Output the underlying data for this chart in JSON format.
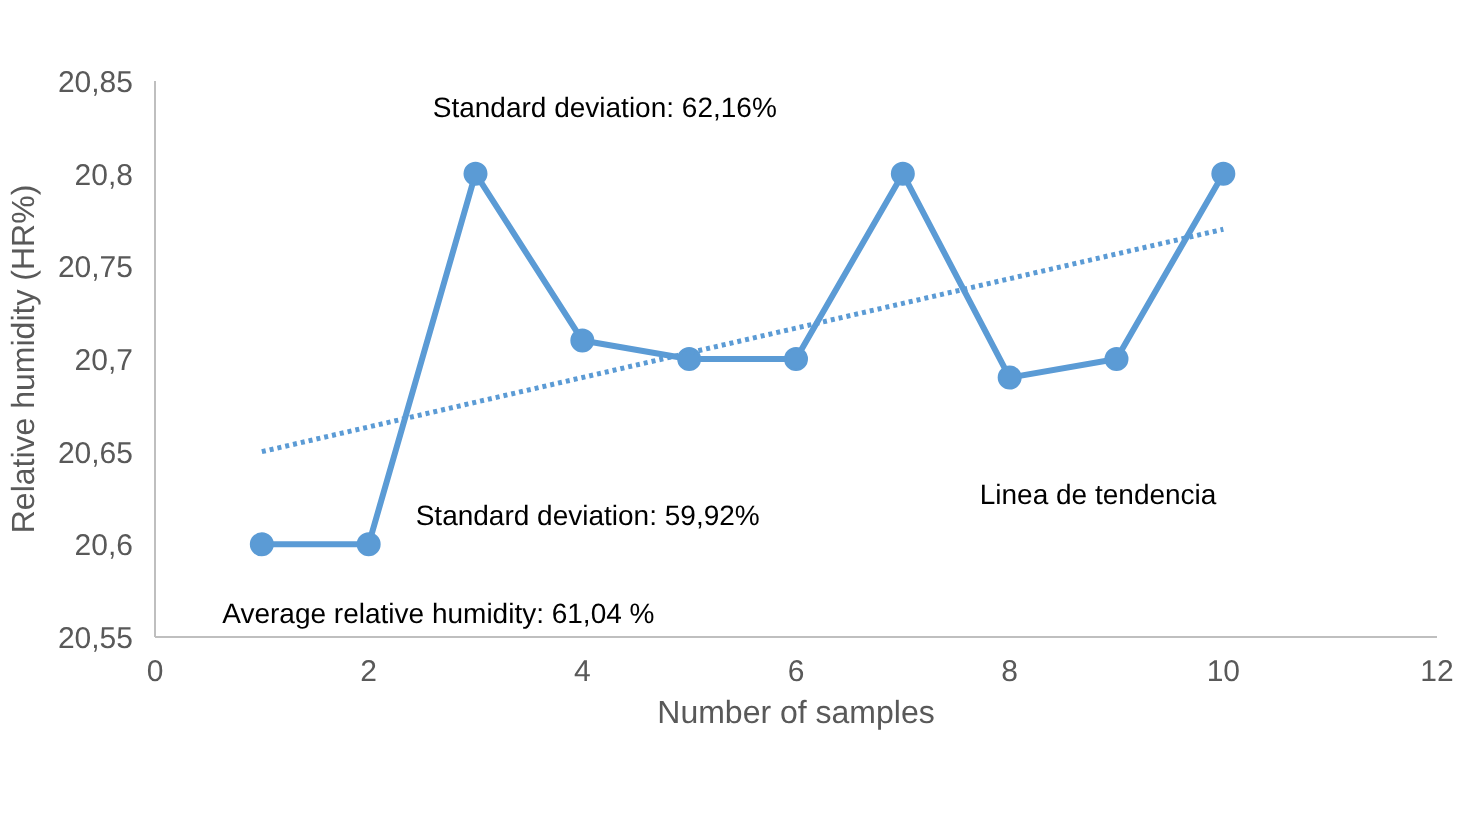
{
  "chart_data": {
    "type": "line",
    "xlabel": "Number of samples",
    "ylabel": "Relative humidity (HR%)",
    "x": [
      1,
      2,
      3,
      4,
      5,
      6,
      7,
      8,
      9,
      10
    ],
    "series": [
      {
        "color": "#5b9bd5",
        "values": [
          20.6,
          20.6,
          20.8,
          20.71,
          20.7,
          20.7,
          20.8,
          20.69,
          20.7,
          20.8
        ],
        "marker": "circle",
        "line_style": "solid"
      },
      {
        "type": "line",
        "x": [
          1,
          10
        ],
        "color": "#5b9bd5",
        "values": [
          20.65,
          20.77
        ],
        "marker": "none",
        "line_style": "dotted"
      }
    ],
    "xlim": [
      0,
      12
    ],
    "xticks": [
      0,
      2,
      4,
      6,
      8,
      10,
      12
    ],
    "ylim": [
      20.55,
      20.85
    ],
    "yticks": [
      {
        "value": 20.55,
        "label": "20,55"
      },
      {
        "value": 20.6,
        "label": "20,6"
      },
      {
        "value": 20.65,
        "label": "20,65"
      },
      {
        "value": 20.7,
        "label": "20,7"
      },
      {
        "value": 20.75,
        "label": "20,75"
      },
      {
        "value": 20.8,
        "label": "20,8"
      },
      {
        "value": 20.85,
        "label": "20,85"
      }
    ],
    "grid": false,
    "annotations": [
      "Standard deviation: 62,16%",
      "Standard deviation: 59,92%",
      "Average relative humidity: 61,04 %",
      "Linea de tendencia"
    ]
  }
}
